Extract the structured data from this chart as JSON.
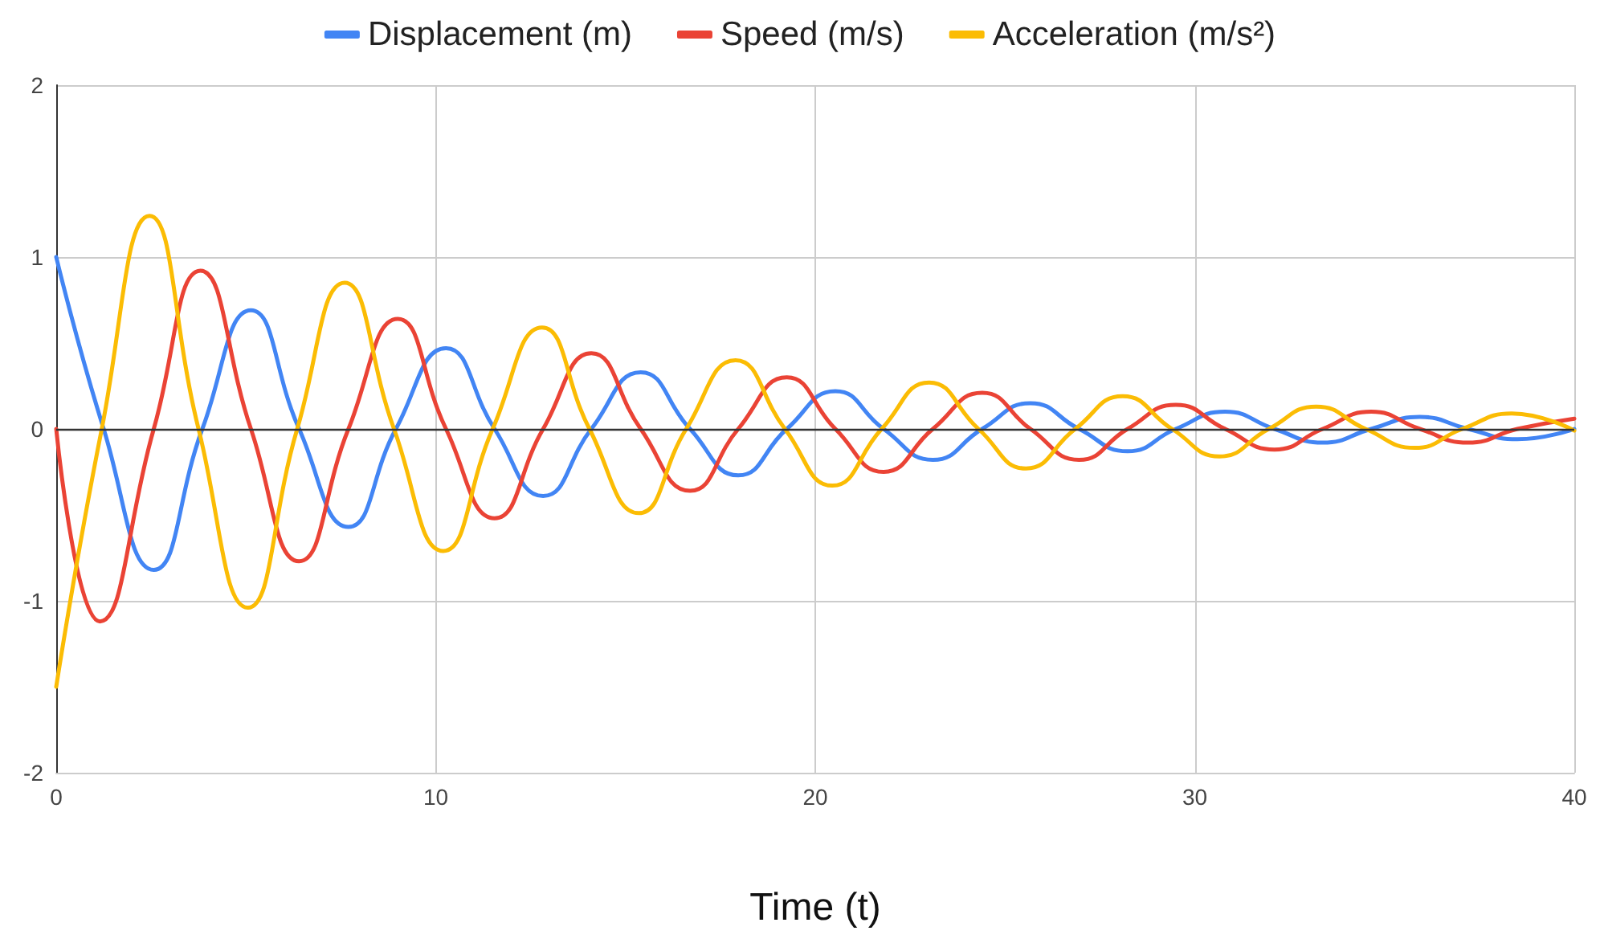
{
  "chart_data": {
    "type": "line",
    "xlabel": "Time (t)",
    "xlim": [
      0,
      40
    ],
    "xticks": [
      0,
      10,
      20,
      30,
      40
    ],
    "ylim": [
      -2,
      2
    ],
    "yticks": [
      -2,
      -1,
      0,
      1,
      2
    ],
    "grid": true,
    "legend": "top",
    "marker": "none",
    "line_style": "solid",
    "series": [
      {
        "name": "Displacement (m)",
        "color": "#4285f4",
        "x": [
          0,
          1.25,
          2.57,
          3.85,
          5.13,
          6.4,
          7.7,
          8.95,
          10.27,
          11.55,
          12.83,
          14.1,
          15.4,
          16.7,
          17.97,
          19.25,
          20.53,
          21.8,
          23.1,
          24.4,
          25.67,
          26.95,
          28.23,
          29.5,
          30.8,
          32.1,
          33.37,
          34.65,
          35.93,
          37.2,
          38.5,
          40
        ],
        "values": [
          1,
          0,
          -0.82,
          0,
          0.69,
          0,
          -0.57,
          0,
          0.47,
          0,
          -0.39,
          0,
          0.33,
          0,
          -0.27,
          0,
          0.22,
          0,
          -0.18,
          0,
          0.15,
          0,
          -0.13,
          0,
          0.1,
          0,
          -0.08,
          0,
          0.07,
          0,
          -0.06,
          0
        ]
      },
      {
        "name": "Speed (m/s)",
        "color": "#ea4335",
        "x": [
          0,
          1.15,
          2.57,
          3.8,
          5.13,
          6.4,
          7.7,
          9.0,
          10.27,
          11.55,
          12.83,
          14.1,
          15.4,
          16.7,
          17.97,
          19.25,
          20.53,
          21.8,
          23.1,
          24.4,
          25.67,
          26.95,
          28.23,
          29.5,
          30.8,
          32.1,
          33.37,
          34.65,
          35.93,
          37.2,
          38.5,
          40
        ],
        "values": [
          0,
          -1.12,
          0,
          0.92,
          0,
          -0.77,
          0,
          0.64,
          0,
          -0.52,
          0,
          0.44,
          0,
          -0.36,
          0,
          0.3,
          0,
          -0.25,
          0,
          0.21,
          0,
          -0.18,
          0,
          0.14,
          0,
          -0.12,
          0,
          0.1,
          0,
          -0.08,
          0,
          0.06
        ]
      },
      {
        "name": "Acceleration (m/s²)",
        "color": "#fbbc04",
        "x": [
          0,
          1.2,
          2.46,
          3.75,
          5.05,
          6.35,
          7.6,
          8.9,
          10.2,
          11.5,
          12.8,
          14.05,
          15.35,
          16.6,
          17.9,
          19.2,
          20.45,
          21.75,
          23.0,
          24.3,
          25.55,
          26.85,
          28.1,
          29.4,
          30.65,
          31.95,
          33.2,
          34.5,
          35.8,
          37.05,
          38.35,
          40
        ],
        "values": [
          -1.5,
          0,
          1.24,
          0,
          -1.04,
          0,
          0.85,
          0,
          -0.71,
          0,
          0.59,
          0,
          -0.49,
          0,
          0.4,
          0,
          -0.33,
          0,
          0.27,
          0,
          -0.23,
          0,
          0.19,
          0,
          -0.16,
          0,
          0.13,
          0,
          -0.11,
          0,
          0.09,
          -0.01
        ]
      }
    ]
  }
}
